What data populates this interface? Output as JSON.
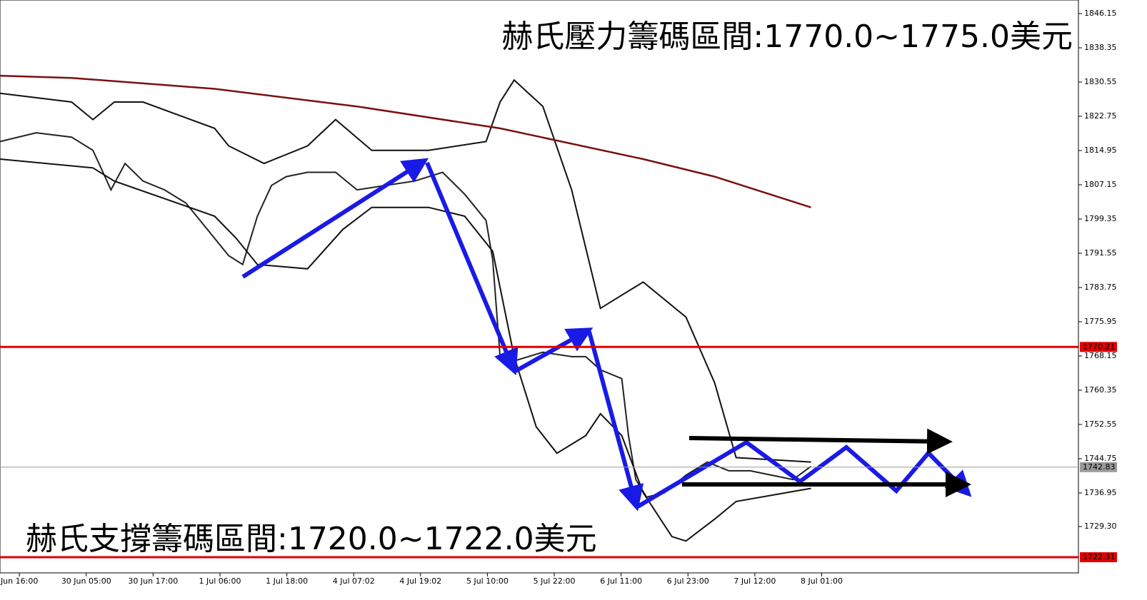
{
  "chart_data": {
    "type": "line",
    "annotations": [
      "赫氏壓力籌碼區間:1770.0~1775.0美元",
      "赫氏支撐籌碼區間:1720.0~1722.0美元"
    ],
    "xlim": [
      -0.29,
      15.84
    ],
    "xticks": [
      {
        "value": 0,
        "label": "Jun 16:00"
      },
      {
        "value": 1,
        "label": "30 Jun 05:00"
      },
      {
        "value": 2,
        "label": "30 Jun 17:00"
      },
      {
        "value": 3,
        "label": "1 Jul 06:00"
      },
      {
        "value": 4,
        "label": "1 Jul 18:00"
      },
      {
        "value": 5,
        "label": "4 Jul 07:02"
      },
      {
        "value": 6,
        "label": "4 Jul 19:02"
      },
      {
        "value": 7,
        "label": "5 Jul 10:00"
      },
      {
        "value": 8,
        "label": "5 Jul 22:00"
      },
      {
        "value": 9,
        "label": "6 Jul 11:00"
      },
      {
        "value": 10,
        "label": "6 Jul 23:00"
      },
      {
        "value": 11,
        "label": "7 Jul 12:00"
      },
      {
        "value": 12,
        "label": "8 Jul 01:00"
      }
    ],
    "ylim": [
      1718.74,
      1849.24
    ],
    "yticks": [
      1846.15,
      1838.35,
      1830.55,
      1822.75,
      1814.95,
      1807.15,
      1799.35,
      1791.55,
      1783.75,
      1775.95,
      1768.15,
      1760.35,
      1752.55,
      1744.75,
      1736.95,
      {
        "value": 1729.3,
        "label": "1729.30"
      }
    ],
    "levels": [
      {
        "value": 1770.21,
        "color": "#e00000"
      },
      {
        "value": 1742.83,
        "color": "#9a9a9a"
      },
      {
        "value": 1722.31,
        "color": "#e00000"
      }
    ],
    "series": [
      {
        "color": "#222222",
        "x": [
          -0.29,
          0.25,
          0.78,
          1.1,
          1.37,
          1.58,
          1.85,
          2.17,
          2.49,
          2.81,
          3.13,
          3.34,
          3.56,
          3.77,
          3.99,
          4.31,
          4.73,
          5.05,
          5.48,
          5.91,
          6.33,
          6.66,
          6.98,
          7.08,
          7.19,
          7.4,
          7.83,
          8.26,
          8.47,
          8.69,
          9.01,
          9.11,
          9.22,
          9.38,
          9.65,
          9.97,
          10.29,
          10.61,
          10.93,
          11.25,
          11.57,
          11.84
        ],
        "values": [
          1817,
          1819,
          1818,
          1815,
          1806,
          1812,
          1808,
          1806,
          1803,
          1797,
          1791,
          1789,
          1800,
          1807,
          1809,
          1810,
          1810,
          1806,
          1807,
          1808,
          1810,
          1805,
          1799,
          1790,
          1768,
          1767,
          1769,
          1768,
          1768,
          1765,
          1763,
          1750,
          1740,
          1736,
          1737,
          1741,
          1744,
          1742,
          1742,
          1741,
          1740,
          1743
        ]
      },
      {
        "color": "#111111",
        "x": [
          -0.29,
          0.78,
          1.1,
          1.42,
          1.85,
          2.92,
          3.13,
          3.66,
          4.31,
          4.73,
          5.27,
          6.12,
          6.98,
          7.19,
          7.4,
          7.83,
          8.26,
          8.69,
          9.01,
          9.33,
          9.97,
          10.4,
          10.72,
          11.84
        ],
        "values": [
          1828,
          1826,
          1822,
          1826,
          1826,
          1820,
          1816,
          1812,
          1816,
          1822,
          1815,
          1815,
          1817,
          1826,
          1831,
          1825,
          1806,
          1779,
          1782,
          1785,
          1777,
          1762,
          1745,
          1744
        ]
      },
      {
        "color": "#111111",
        "x": [
          -0.29,
          1.1,
          1.42,
          2.92,
          3.24,
          3.56,
          4.31,
          4.84,
          5.27,
          6.12,
          6.66,
          7.08,
          7.4,
          7.73,
          8.04,
          8.47,
          8.69,
          9.01,
          9.33,
          9.76,
          9.97,
          10.4,
          10.72,
          11.84
        ],
        "values": [
          1813,
          1811,
          1808,
          1800,
          1795,
          1789,
          1788,
          1797,
          1802,
          1802,
          1800,
          1792,
          1768,
          1752,
          1746,
          1750,
          1755,
          1750,
          1737,
          1727,
          1726,
          1731,
          1735,
          1738
        ]
      },
      {
        "color": "#7a1010",
        "x": [
          -0.29,
          0.78,
          2.92,
          5.05,
          7.19,
          9.33,
          10.4,
          11.84
        ],
        "values": [
          1832,
          1831.5,
          1829,
          1825,
          1820,
          1813,
          1809,
          1802
        ]
      }
    ]
  }
}
